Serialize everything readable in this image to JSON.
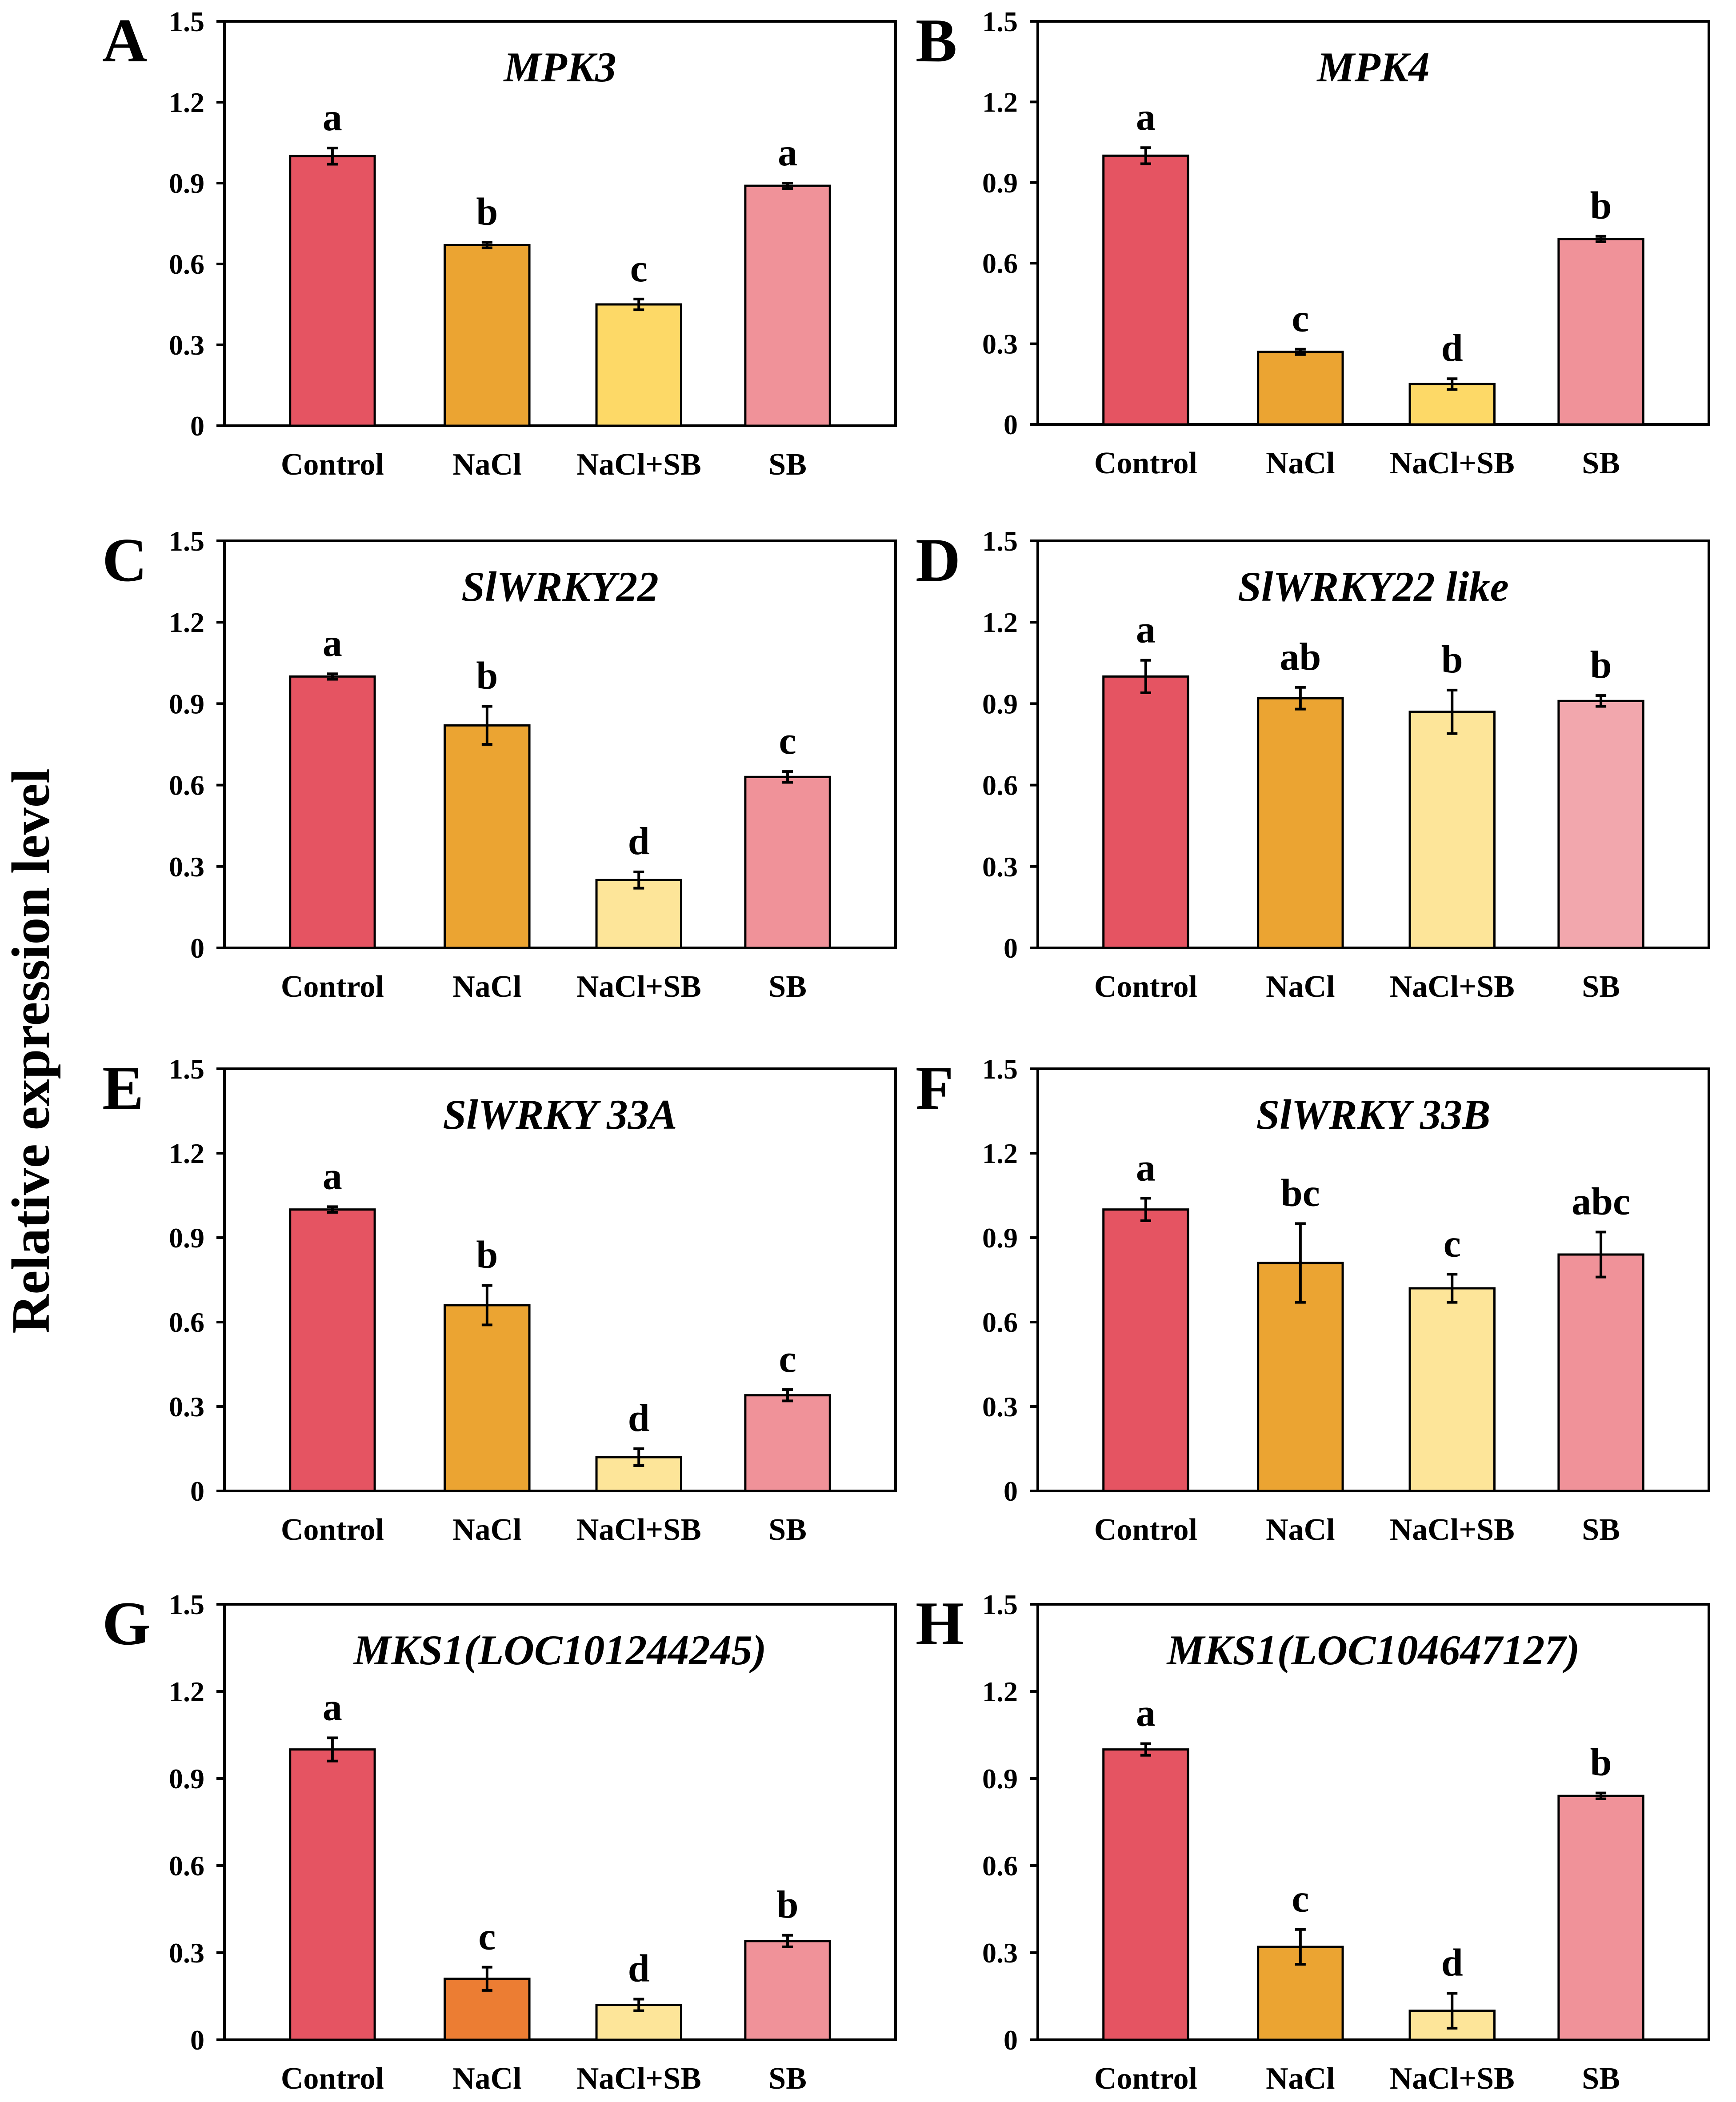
{
  "y_axis_label": "Relative expression level",
  "colors": {
    "control": "#e55462",
    "nacl": "#eba432",
    "nacl_orange": "#ec7d33",
    "nacl_sb": "#fdd967",
    "nacl_sb_light": "#fde599",
    "sb": "#f09299",
    "sb_light": "#f2a7ad",
    "axis": "#000000"
  },
  "chart_data": [
    {
      "panel": "A",
      "type": "bar",
      "title": "MPK3",
      "categories": [
        "Control",
        "NaCl",
        "NaCl+SB",
        "SB"
      ],
      "values": [
        1.0,
        0.67,
        0.45,
        0.89
      ],
      "errors": [
        0.03,
        0.01,
        0.02,
        0.01
      ],
      "letters": [
        "a",
        "b",
        "c",
        "a"
      ],
      "ylim": [
        0,
        1.5
      ],
      "yticks": [
        "0",
        "0.3",
        "0.6",
        "0.9",
        "1.2",
        "1.5"
      ],
      "colors": [
        "#e55462",
        "#eba432",
        "#fdd967",
        "#f09299"
      ]
    },
    {
      "panel": "B",
      "type": "bar",
      "title": "MPK4",
      "categories": [
        "Control",
        "NaCl",
        "NaCl+SB",
        "SB"
      ],
      "values": [
        1.0,
        0.27,
        0.15,
        0.69
      ],
      "errors": [
        0.03,
        0.01,
        0.02,
        0.01
      ],
      "letters": [
        "a",
        "c",
        "d",
        "b"
      ],
      "ylim": [
        0,
        1.5
      ],
      "yticks": [
        "0",
        "0.3",
        "0.6",
        "0.9",
        "1.2",
        "1.5"
      ],
      "colors": [
        "#e55462",
        "#eba432",
        "#fdd967",
        "#f09299"
      ]
    },
    {
      "panel": "C",
      "type": "bar",
      "title": "SlWRKY22",
      "categories": [
        "Control",
        "NaCl",
        "NaCl+SB",
        "SB"
      ],
      "values": [
        1.0,
        0.82,
        0.25,
        0.63
      ],
      "errors": [
        0.01,
        0.07,
        0.03,
        0.02
      ],
      "letters": [
        "a",
        "b",
        "d",
        "c"
      ],
      "ylim": [
        0,
        1.5
      ],
      "yticks": [
        "0",
        "0.3",
        "0.6",
        "0.9",
        "1.2",
        "1.5"
      ],
      "colors": [
        "#e55462",
        "#eba432",
        "#fde599",
        "#f09299"
      ]
    },
    {
      "panel": "D",
      "type": "bar",
      "title": "SlWRKY22 like",
      "categories": [
        "Control",
        "NaCl",
        "NaCl+SB",
        "SB"
      ],
      "values": [
        1.0,
        0.92,
        0.87,
        0.91
      ],
      "errors": [
        0.06,
        0.04,
        0.08,
        0.02
      ],
      "letters": [
        "a",
        "ab",
        "b",
        "b"
      ],
      "ylim": [
        0,
        1.5
      ],
      "yticks": [
        "0",
        "0.3",
        "0.6",
        "0.9",
        "1.2",
        "1.5"
      ],
      "colors": [
        "#e55462",
        "#eba432",
        "#fde599",
        "#f2a7ad"
      ]
    },
    {
      "panel": "E",
      "type": "bar",
      "title": "SlWRKY 33A",
      "categories": [
        "Control",
        "NaCl",
        "NaCl+SB",
        "SB"
      ],
      "values": [
        1.0,
        0.66,
        0.12,
        0.34
      ],
      "errors": [
        0.01,
        0.07,
        0.03,
        0.02
      ],
      "letters": [
        "a",
        "b",
        "d",
        "c"
      ],
      "ylim": [
        0,
        1.5
      ],
      "yticks": [
        "0",
        "0.3",
        "0.6",
        "0.9",
        "1.2",
        "1.5"
      ],
      "colors": [
        "#e55462",
        "#eba432",
        "#fde599",
        "#f09299"
      ]
    },
    {
      "panel": "F",
      "type": "bar",
      "title": "SlWRKY 33B",
      "categories": [
        "Control",
        "NaCl",
        "NaCl+SB",
        "SB"
      ],
      "values": [
        1.0,
        0.81,
        0.72,
        0.84
      ],
      "errors": [
        0.04,
        0.14,
        0.05,
        0.08
      ],
      "letters": [
        "a",
        "bc",
        "c",
        "abc"
      ],
      "ylim": [
        0,
        1.5
      ],
      "yticks": [
        "0",
        "0.3",
        "0.6",
        "0.9",
        "1.2",
        "1.5"
      ],
      "colors": [
        "#e55462",
        "#eba432",
        "#fde599",
        "#f09299"
      ]
    },
    {
      "panel": "G",
      "type": "bar",
      "title": "MKS1(LOC101244245)",
      "categories": [
        "Control",
        "NaCl",
        "NaCl+SB",
        "SB"
      ],
      "values": [
        1.0,
        0.21,
        0.12,
        0.34
      ],
      "errors": [
        0.04,
        0.04,
        0.02,
        0.02
      ],
      "letters": [
        "a",
        "c",
        "d",
        "b"
      ],
      "ylim": [
        0,
        1.5
      ],
      "yticks": [
        "0",
        "0.3",
        "0.6",
        "0.9",
        "1.2",
        "1.5"
      ],
      "colors": [
        "#e55462",
        "#ec7d33",
        "#fde599",
        "#f09299"
      ]
    },
    {
      "panel": "H",
      "type": "bar",
      "title": "MKS1(LOC104647127)",
      "categories": [
        "Control",
        "NaCl",
        "NaCl+SB",
        "SB"
      ],
      "values": [
        1.0,
        0.32,
        0.1,
        0.84
      ],
      "errors": [
        0.02,
        0.06,
        0.06,
        0.01
      ],
      "letters": [
        "a",
        "c",
        "d",
        "b"
      ],
      "ylim": [
        0,
        1.5
      ],
      "yticks": [
        "0",
        "0.3",
        "0.6",
        "0.9",
        "1.2",
        "1.5"
      ],
      "colors": [
        "#e55462",
        "#eba432",
        "#fde599",
        "#f09299"
      ]
    }
  ]
}
